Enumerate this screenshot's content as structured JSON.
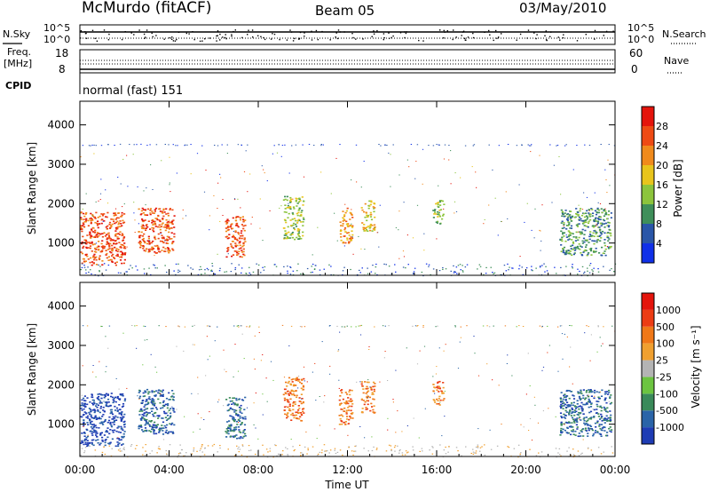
{
  "header": {
    "station": "McMurdo (fitACF)",
    "beam": "Beam 05",
    "date": "03/May/2010"
  },
  "noise_panel": {
    "left_label": "N.Sky",
    "right_label": "N.Search",
    "left_ticks": [
      "10^5",
      "10^0"
    ],
    "right_ticks": [
      "10^5",
      "10^0"
    ]
  },
  "freq_panel": {
    "left_label_1": "Freq.",
    "left_label_2": "[MHz]",
    "left_ticks": [
      "18",
      "8"
    ],
    "right_label": "Nave",
    "right_ticks": [
      "60",
      "0"
    ]
  },
  "cpid": {
    "label": "CPID",
    "value": "normal (fast) 151"
  },
  "chart_data": [
    {
      "type": "heatmap",
      "title": "",
      "ylabel": "Slant Range [km]",
      "xlabel": "Time UT",
      "ylim": [
        180,
        4600
      ],
      "xlim": [
        0,
        24
      ],
      "yticks": [
        "1000",
        "2000",
        "3000",
        "4000"
      ],
      "xticks": [
        "00:00",
        "04:00",
        "08:00",
        "12:00",
        "16:00",
        "20:00",
        "00:00"
      ],
      "colorbar": {
        "label": "Power [dB]",
        "tick_labels": [
          "4",
          "8",
          "12",
          "16",
          "20",
          "24",
          "28"
        ],
        "colors": [
          "#1030e8",
          "#2a56a8",
          "#3f8f5a",
          "#8cc43c",
          "#e8c41c",
          "#f08a1c",
          "#ee4a14",
          "#e4140c"
        ]
      },
      "echo_regions": [
        {
          "t0": 0.0,
          "t1": 2.0,
          "r0": 450,
          "r1": 1800,
          "level": 6
        },
        {
          "t0": 2.6,
          "t1": 4.2,
          "r0": 750,
          "r1": 1900,
          "level": 6
        },
        {
          "t0": 6.5,
          "t1": 7.4,
          "r0": 650,
          "r1": 1700,
          "level": 6
        },
        {
          "t0": 9.1,
          "t1": 10.0,
          "r0": 1100,
          "r1": 2200,
          "level": 3
        },
        {
          "t0": 11.6,
          "t1": 12.2,
          "r0": 1000,
          "r1": 1900,
          "level": 5
        },
        {
          "t0": 12.6,
          "t1": 13.2,
          "r0": 1300,
          "r1": 2100,
          "level": 4
        },
        {
          "t0": 15.8,
          "t1": 16.3,
          "r0": 1500,
          "r1": 2100,
          "level": 3
        },
        {
          "t0": 21.5,
          "t1": 23.8,
          "r0": 700,
          "r1": 1900,
          "level": 2
        }
      ]
    },
    {
      "type": "heatmap",
      "title": "",
      "ylabel": "Slant Range [km]",
      "xlabel": "Time UT",
      "ylim": [
        180,
        4600
      ],
      "xlim": [
        0,
        24
      ],
      "yticks": [
        "1000",
        "2000",
        "3000",
        "4000"
      ],
      "xticks": [
        "00:00",
        "04:00",
        "08:00",
        "12:00",
        "16:00",
        "20:00",
        "00:00"
      ],
      "colorbar": {
        "label": "Velocity [m s⁻¹]",
        "tick_labels": [
          "1000",
          "500",
          "100",
          "25",
          "-25",
          "-100",
          "-500",
          "-1000"
        ],
        "colors": [
          "#1e3cb4",
          "#2a64a8",
          "#3a8a5a",
          "#6cc440",
          "#b4b4b4",
          "#f0a030",
          "#f07818",
          "#ec3c14",
          "#e4140c"
        ]
      },
      "echo_regions": [
        {
          "t0": 0.0,
          "t1": 2.0,
          "r0": 450,
          "r1": 1800,
          "level": 0
        },
        {
          "t0": 2.6,
          "t1": 4.2,
          "r0": 750,
          "r1": 1900,
          "level": 1
        },
        {
          "t0": 6.5,
          "t1": 7.4,
          "r0": 650,
          "r1": 1700,
          "level": 1
        },
        {
          "t0": 9.1,
          "t1": 10.0,
          "r0": 1100,
          "r1": 2200,
          "level": 6
        },
        {
          "t0": 11.6,
          "t1": 12.2,
          "r0": 1000,
          "r1": 1900,
          "level": 6
        },
        {
          "t0": 12.6,
          "t1": 13.2,
          "r0": 1300,
          "r1": 2100,
          "level": 6
        },
        {
          "t0": 15.8,
          "t1": 16.3,
          "r0": 1500,
          "r1": 2100,
          "level": 6
        },
        {
          "t0": 21.5,
          "t1": 23.8,
          "r0": 700,
          "r1": 1900,
          "level": 1
        }
      ]
    }
  ]
}
